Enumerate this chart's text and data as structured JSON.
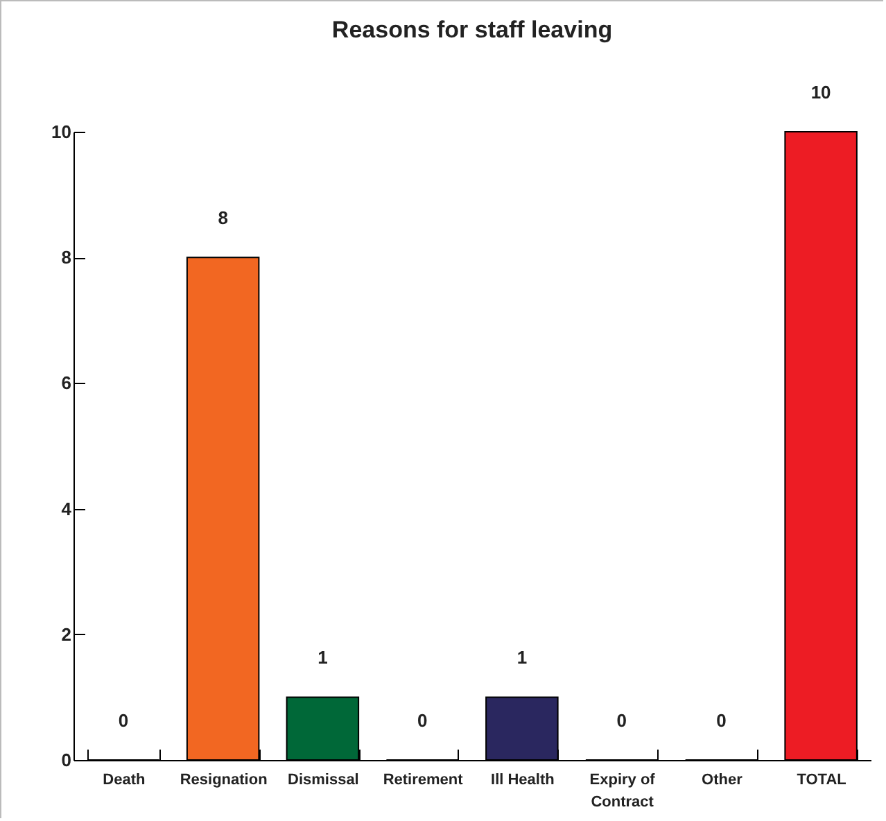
{
  "chart_data": {
    "type": "bar",
    "title": "Reasons for staff leaving",
    "categories": [
      "Death",
      "Resignation",
      "Dismissal",
      "Retirement",
      "Ill Health",
      "Expiry of Contract",
      "Other",
      "TOTAL"
    ],
    "values": [
      0,
      8,
      1,
      0,
      1,
      0,
      0,
      10
    ],
    "colors": [
      "#000000",
      "#f26722",
      "#006838",
      "#000000",
      "#2a275f",
      "#000000",
      "#000000",
      "#ed1c24"
    ],
    "ylim": [
      0,
      10
    ],
    "yticks": [
      0,
      2,
      4,
      6,
      8,
      10
    ],
    "grid": false,
    "data_labels": true
  }
}
